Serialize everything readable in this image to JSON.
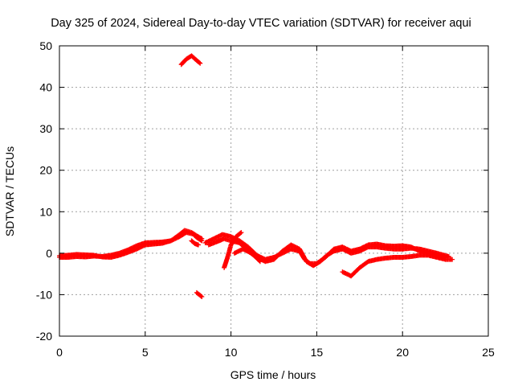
{
  "chart_data": {
    "type": "scatter",
    "title": "Day 325 of 2024, Sidereal Day-to-day VTEC variation (SDTVAR) for receiver aqui",
    "xlabel": "GPS time / hours",
    "ylabel": "SDTVAR / TECUs",
    "xlim": [
      0,
      25
    ],
    "ylim": [
      -20,
      50
    ],
    "xticks": [
      0,
      5,
      10,
      15,
      20,
      25
    ],
    "yticks": [
      -20,
      -10,
      0,
      10,
      20,
      30,
      40,
      50
    ],
    "grid": true,
    "series": [
      {
        "name": "SDTVAR",
        "color": "#ff0000",
        "marker": "+",
        "tracks": [
          [
            [
              0.0,
              -1.0
            ],
            [
              0.5,
              -1.0
            ],
            [
              1.0,
              -0.8
            ],
            [
              1.5,
              -0.9
            ],
            [
              2.0,
              -0.7
            ],
            [
              2.5,
              -0.8
            ],
            [
              3.0,
              -0.5
            ],
            [
              3.5,
              0.0
            ],
            [
              4.0,
              0.8
            ],
            [
              4.5,
              1.8
            ],
            [
              5.0,
              2.5
            ],
            [
              5.5,
              2.6
            ],
            [
              6.0,
              2.7
            ],
            [
              6.5,
              3.0
            ],
            [
              7.0,
              4.0
            ],
            [
              7.4,
              5.0
            ],
            [
              7.8,
              4.6
            ],
            [
              8.0,
              3.8
            ],
            [
              8.3,
              3.0
            ]
          ],
          [
            [
              0.0,
              -0.6
            ],
            [
              0.5,
              -0.5
            ],
            [
              1.0,
              -0.3
            ],
            [
              1.5,
              -0.4
            ],
            [
              2.0,
              -0.5
            ],
            [
              2.5,
              -0.9
            ],
            [
              3.0,
              -1.0
            ],
            [
              3.5,
              -0.5
            ],
            [
              4.0,
              0.2
            ],
            [
              4.5,
              1.0
            ],
            [
              5.0,
              2.0
            ],
            [
              5.5,
              2.2
            ],
            [
              6.0,
              2.4
            ],
            [
              6.5,
              3.0
            ],
            [
              7.0,
              4.5
            ],
            [
              7.3,
              5.5
            ],
            [
              7.7,
              5.0
            ],
            [
              8.0,
              4.2
            ],
            [
              8.3,
              3.5
            ]
          ],
          [
            [
              7.1,
              45.5
            ],
            [
              7.4,
              46.8
            ],
            [
              7.7,
              47.6
            ],
            [
              8.0,
              46.5
            ],
            [
              8.2,
              45.8
            ]
          ],
          [
            [
              7.7,
              3.0
            ],
            [
              7.9,
              2.3
            ],
            [
              8.1,
              2.0
            ]
          ],
          [
            [
              8.0,
              -9.5
            ],
            [
              8.3,
              -10.5
            ]
          ],
          [
            [
              8.5,
              2.5
            ],
            [
              9.0,
              3.5
            ],
            [
              9.5,
              4.5
            ],
            [
              10.0,
              4.0
            ],
            [
              10.5,
              3.0
            ],
            [
              11.0,
              1.5
            ],
            [
              11.5,
              -0.5
            ],
            [
              12.0,
              -1.5
            ],
            [
              12.5,
              -1.0
            ],
            [
              13.0,
              0.0
            ],
            [
              13.5,
              1.0
            ],
            [
              14.0,
              0.5
            ],
            [
              14.3,
              -1.5
            ],
            [
              14.6,
              -2.5
            ],
            [
              15.0,
              -2.5
            ],
            [
              15.5,
              -1.0
            ],
            [
              16.0,
              1.0
            ],
            [
              16.5,
              1.5
            ],
            [
              17.0,
              0.5
            ],
            [
              17.5,
              1.0
            ],
            [
              18.0,
              2.0
            ],
            [
              18.5,
              2.2
            ],
            [
              19.0,
              1.8
            ],
            [
              19.5,
              1.7
            ],
            [
              20.0,
              1.8
            ],
            [
              20.5,
              1.5
            ],
            [
              21.0,
              0.5
            ],
            [
              21.5,
              0.0
            ],
            [
              22.0,
              -0.5
            ],
            [
              22.5,
              -1.0
            ]
          ],
          [
            [
              8.7,
              2.0
            ],
            [
              9.2,
              2.8
            ],
            [
              9.6,
              3.5
            ],
            [
              10.0,
              3.0
            ],
            [
              10.5,
              2.5
            ],
            [
              11.0,
              0.5
            ],
            [
              11.5,
              -1.0
            ],
            [
              12.0,
              -2.0
            ],
            [
              12.5,
              -1.5
            ],
            [
              13.0,
              0.5
            ],
            [
              13.5,
              2.0
            ],
            [
              14.0,
              1.0
            ],
            [
              14.4,
              -2.0
            ],
            [
              14.8,
              -3.0
            ],
            [
              15.2,
              -2.0
            ],
            [
              15.6,
              -0.5
            ],
            [
              16.0,
              0.5
            ],
            [
              16.5,
              1.0
            ],
            [
              17.0,
              0.0
            ],
            [
              17.5,
              0.5
            ],
            [
              18.0,
              1.5
            ],
            [
              18.5,
              1.5
            ],
            [
              19.0,
              1.2
            ],
            [
              19.5,
              1.0
            ],
            [
              20.0,
              1.0
            ],
            [
              20.5,
              1.2
            ],
            [
              21.0,
              1.0
            ],
            [
              21.5,
              0.5
            ],
            [
              22.0,
              0.0
            ],
            [
              22.7,
              -0.8
            ]
          ],
          [
            [
              9.6,
              -3.5
            ],
            [
              9.8,
              -1.0
            ],
            [
              10.0,
              2.0
            ],
            [
              10.3,
              4.0
            ],
            [
              10.6,
              5.0
            ]
          ],
          [
            [
              10.2,
              0.0
            ],
            [
              10.7,
              1.0
            ],
            [
              11.2,
              0.0
            ],
            [
              11.7,
              -2.0
            ]
          ],
          [
            [
              16.5,
              -4.5
            ],
            [
              17.0,
              -5.5
            ],
            [
              17.5,
              -3.5
            ],
            [
              18.0,
              -2.0
            ],
            [
              18.5,
              -1.5
            ],
            [
              19.0,
              -1.2
            ],
            [
              19.5,
              -1.0
            ],
            [
              20.0,
              -1.0
            ],
            [
              20.5,
              -0.8
            ],
            [
              21.0,
              -0.5
            ],
            [
              21.5,
              -0.5
            ],
            [
              22.0,
              -1.0
            ],
            [
              22.5,
              -1.5
            ],
            [
              22.9,
              -1.5
            ]
          ]
        ]
      }
    ]
  }
}
